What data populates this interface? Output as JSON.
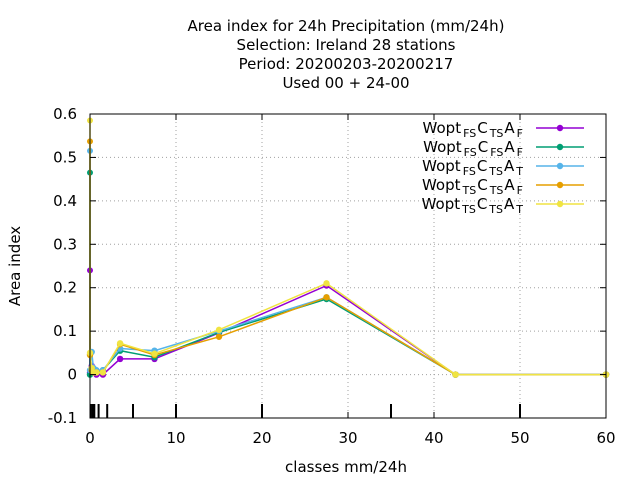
{
  "chart_data": {
    "type": "line",
    "title_lines": [
      "Area index  for 24h Precipitation (mm/24h)",
      "Selection: Ireland      28 stations",
      "Period: 20200203-20200217",
      "Used  00 + 24-00"
    ],
    "xlabel": "classes mm/24h",
    "ylabel": "Area index",
    "xlim": [
      0,
      60
    ],
    "ylim": [
      -0.1,
      0.6
    ],
    "xticks": [
      0,
      10,
      20,
      30,
      40,
      50,
      60
    ],
    "yticks": [
      -0.1,
      0,
      0.1,
      0.2,
      0.3,
      0.4,
      0.5,
      0.6
    ],
    "xtick_labels": [
      "0",
      "10",
      "20",
      "30",
      "40",
      "50",
      "60"
    ],
    "ytick_labels": [
      "-0.1",
      "0",
      "0.1",
      "0.2",
      "0.3",
      "0.4",
      "0.5",
      "0.6"
    ],
    "grid": true,
    "legend_position": "top-right",
    "class_marks": [
      0.1,
      0.3,
      0.5,
      1,
      2,
      5,
      10,
      20,
      35,
      50
    ],
    "x": [
      0,
      0.2,
      0.4,
      0.75,
      1.5,
      3.5,
      7.5,
      15,
      27.5,
      42.5,
      60
    ],
    "series": [
      {
        "legend": [
          [
            "Wopt",
            ""
          ],
          [
            "FS",
            "sub"
          ],
          [
            "C",
            ""
          ],
          [
            "TS",
            "sub"
          ],
          [
            "A",
            ""
          ],
          [
            "F",
            "sub"
          ]
        ],
        "color": "#9400d3",
        "spike": 0.24,
        "values": [
          0.005,
          0.02,
          0.01,
          0.0,
          0.0,
          0.036,
          0.036,
          0.096,
          0.205,
          0.0,
          0.0
        ]
      },
      {
        "legend": [
          [
            "Wopt",
            ""
          ],
          [
            "FS",
            "sub"
          ],
          [
            "C",
            ""
          ],
          [
            "FS",
            "sub"
          ],
          [
            "A",
            ""
          ],
          [
            "F",
            "sub"
          ]
        ],
        "color": "#009e73",
        "spike": 0.465,
        "values": [
          0.0,
          0.01,
          0.005,
          0.005,
          0.01,
          0.055,
          0.04,
          0.097,
          0.174,
          0.0,
          0.0
        ]
      },
      {
        "legend": [
          [
            "Wopt",
            ""
          ],
          [
            "FS",
            "sub"
          ],
          [
            "C",
            ""
          ],
          [
            "TS",
            "sub"
          ],
          [
            "A",
            ""
          ],
          [
            "T",
            "sub"
          ]
        ],
        "color": "#56b4e9",
        "spike": 0.515,
        "values": [
          0.01,
          0.052,
          0.015,
          0.01,
          0.01,
          0.06,
          0.055,
          0.1,
          0.178,
          0.0,
          0.0
        ]
      },
      {
        "legend": [
          [
            "Wopt",
            ""
          ],
          [
            "TS",
            "sub"
          ],
          [
            "C",
            ""
          ],
          [
            "TS",
            "sub"
          ],
          [
            "A",
            ""
          ],
          [
            "F",
            "sub"
          ]
        ],
        "color": "#e69f00",
        "spike": 0.537,
        "values": [
          0.045,
          0.01,
          0.005,
          0.005,
          0.005,
          0.07,
          0.045,
          0.087,
          0.178,
          0.0,
          0.0
        ]
      },
      {
        "legend": [
          [
            "Wopt",
            ""
          ],
          [
            "TS",
            "sub"
          ],
          [
            "C",
            ""
          ],
          [
            "TS",
            "sub"
          ],
          [
            "A",
            ""
          ],
          [
            "T",
            "sub"
          ]
        ],
        "color": "#f0e442",
        "spike": 0.585,
        "values": [
          0.05,
          0.015,
          0.005,
          0.005,
          0.005,
          0.072,
          0.048,
          0.103,
          0.21,
          0.0,
          0.0
        ]
      }
    ]
  }
}
